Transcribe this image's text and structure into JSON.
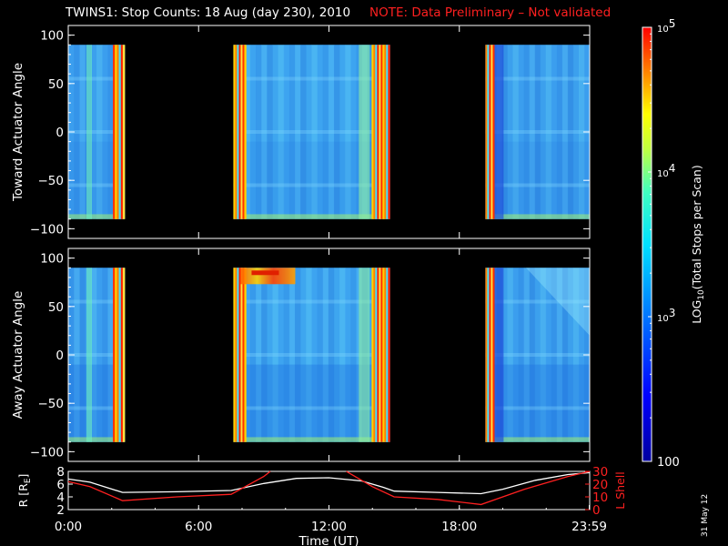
{
  "header": {
    "title": "TWINS1: Stop Counts: 18 Aug (day 230), 2010",
    "note": "NOTE: Data Preliminary – Not validated"
  },
  "footer": {
    "date_stamp": "31 May 12"
  },
  "colors": {
    "note": "#ff2020",
    "lshell": "#ff2020",
    "radius": "#ffffff",
    "axes": "#ffffff",
    "background": "#000000"
  },
  "chart_data": [
    {
      "type": "heatmap",
      "title": "",
      "ylabel": "Toward Actuator Angle",
      "ylim": [
        -110,
        110
      ],
      "yticks": [
        "100",
        "50",
        "0",
        "−50",
        "−100"
      ],
      "angle_range": [
        -90,
        90
      ],
      "data_hours": [
        [
          0.0,
          2.6
        ],
        [
          7.6,
          14.8
        ],
        [
          19.2,
          24.0
        ]
      ],
      "xlim_hours": [
        0,
        24
      ]
    },
    {
      "type": "heatmap",
      "title": "",
      "ylabel": "Away Actuator Angle",
      "ylim": [
        -110,
        110
      ],
      "yticks": [
        "100",
        "50",
        "0",
        "−50",
        "−100"
      ],
      "angle_range": [
        -90,
        90
      ],
      "data_hours": [
        [
          0.0,
          2.6
        ],
        [
          7.6,
          14.8
        ],
        [
          19.2,
          24.0
        ]
      ],
      "xlim_hours": [
        0,
        24
      ]
    },
    {
      "type": "line",
      "ylabel": "R [R",
      "ylabel_sub": "E",
      "ylabel_end": "]",
      "ylabel_right": "L Shell",
      "ylim_left": [
        2,
        8
      ],
      "ylim_right": [
        0,
        30
      ],
      "yticks_left": [
        "8",
        "6",
        "4",
        "2"
      ],
      "yticks_right": [
        "30",
        "20",
        "10",
        "0"
      ],
      "xlabel": "Time (UT)",
      "xticks": [
        "0:00",
        "6:00",
        "12:00",
        "18:00",
        "23:59"
      ],
      "xtick_hours": [
        0,
        6,
        12,
        18,
        23.98
      ],
      "series": [
        {
          "color": "#ffffff",
          "x": [
            0,
            1,
            2.5,
            5,
            7.5,
            9,
            10.5,
            12,
            13.5,
            14.5,
            15,
            17,
            19,
            20,
            21.5,
            23,
            24
          ],
          "y": [
            6.8,
            6.3,
            4.7,
            4.8,
            5.0,
            6.1,
            6.9,
            7.0,
            6.5,
            5.5,
            4.9,
            4.7,
            4.5,
            5.2,
            6.6,
            7.5,
            7.8
          ]
        },
        {
          "color": "#ff2020",
          "x": [
            0,
            1,
            2.5,
            5,
            7.5,
            9,
            9.3
          ],
          "y": [
            22,
            18,
            7,
            10,
            12,
            26,
            30
          ]
        },
        {
          "color": "#ff2020",
          "x": [
            12.8,
            13,
            14,
            15,
            17,
            19,
            21,
            23,
            24
          ],
          "y": [
            30,
            28,
            18,
            10,
            8,
            4,
            16,
            26,
            30
          ]
        }
      ]
    }
  ],
  "colorbar": {
    "label_main": "LOG",
    "label_sub": "10",
    "label_rest": "(Total Stops per Scan)",
    "ticks": [
      {
        "base": "10",
        "exp": "5",
        "value": 100000
      },
      {
        "base": "10",
        "exp": "4",
        "value": 10000
      },
      {
        "base": "10",
        "exp": "3",
        "value": 1000
      },
      {
        "base": "100",
        "exp": "",
        "value": 100
      }
    ],
    "range_log": [
      2,
      5
    ]
  }
}
